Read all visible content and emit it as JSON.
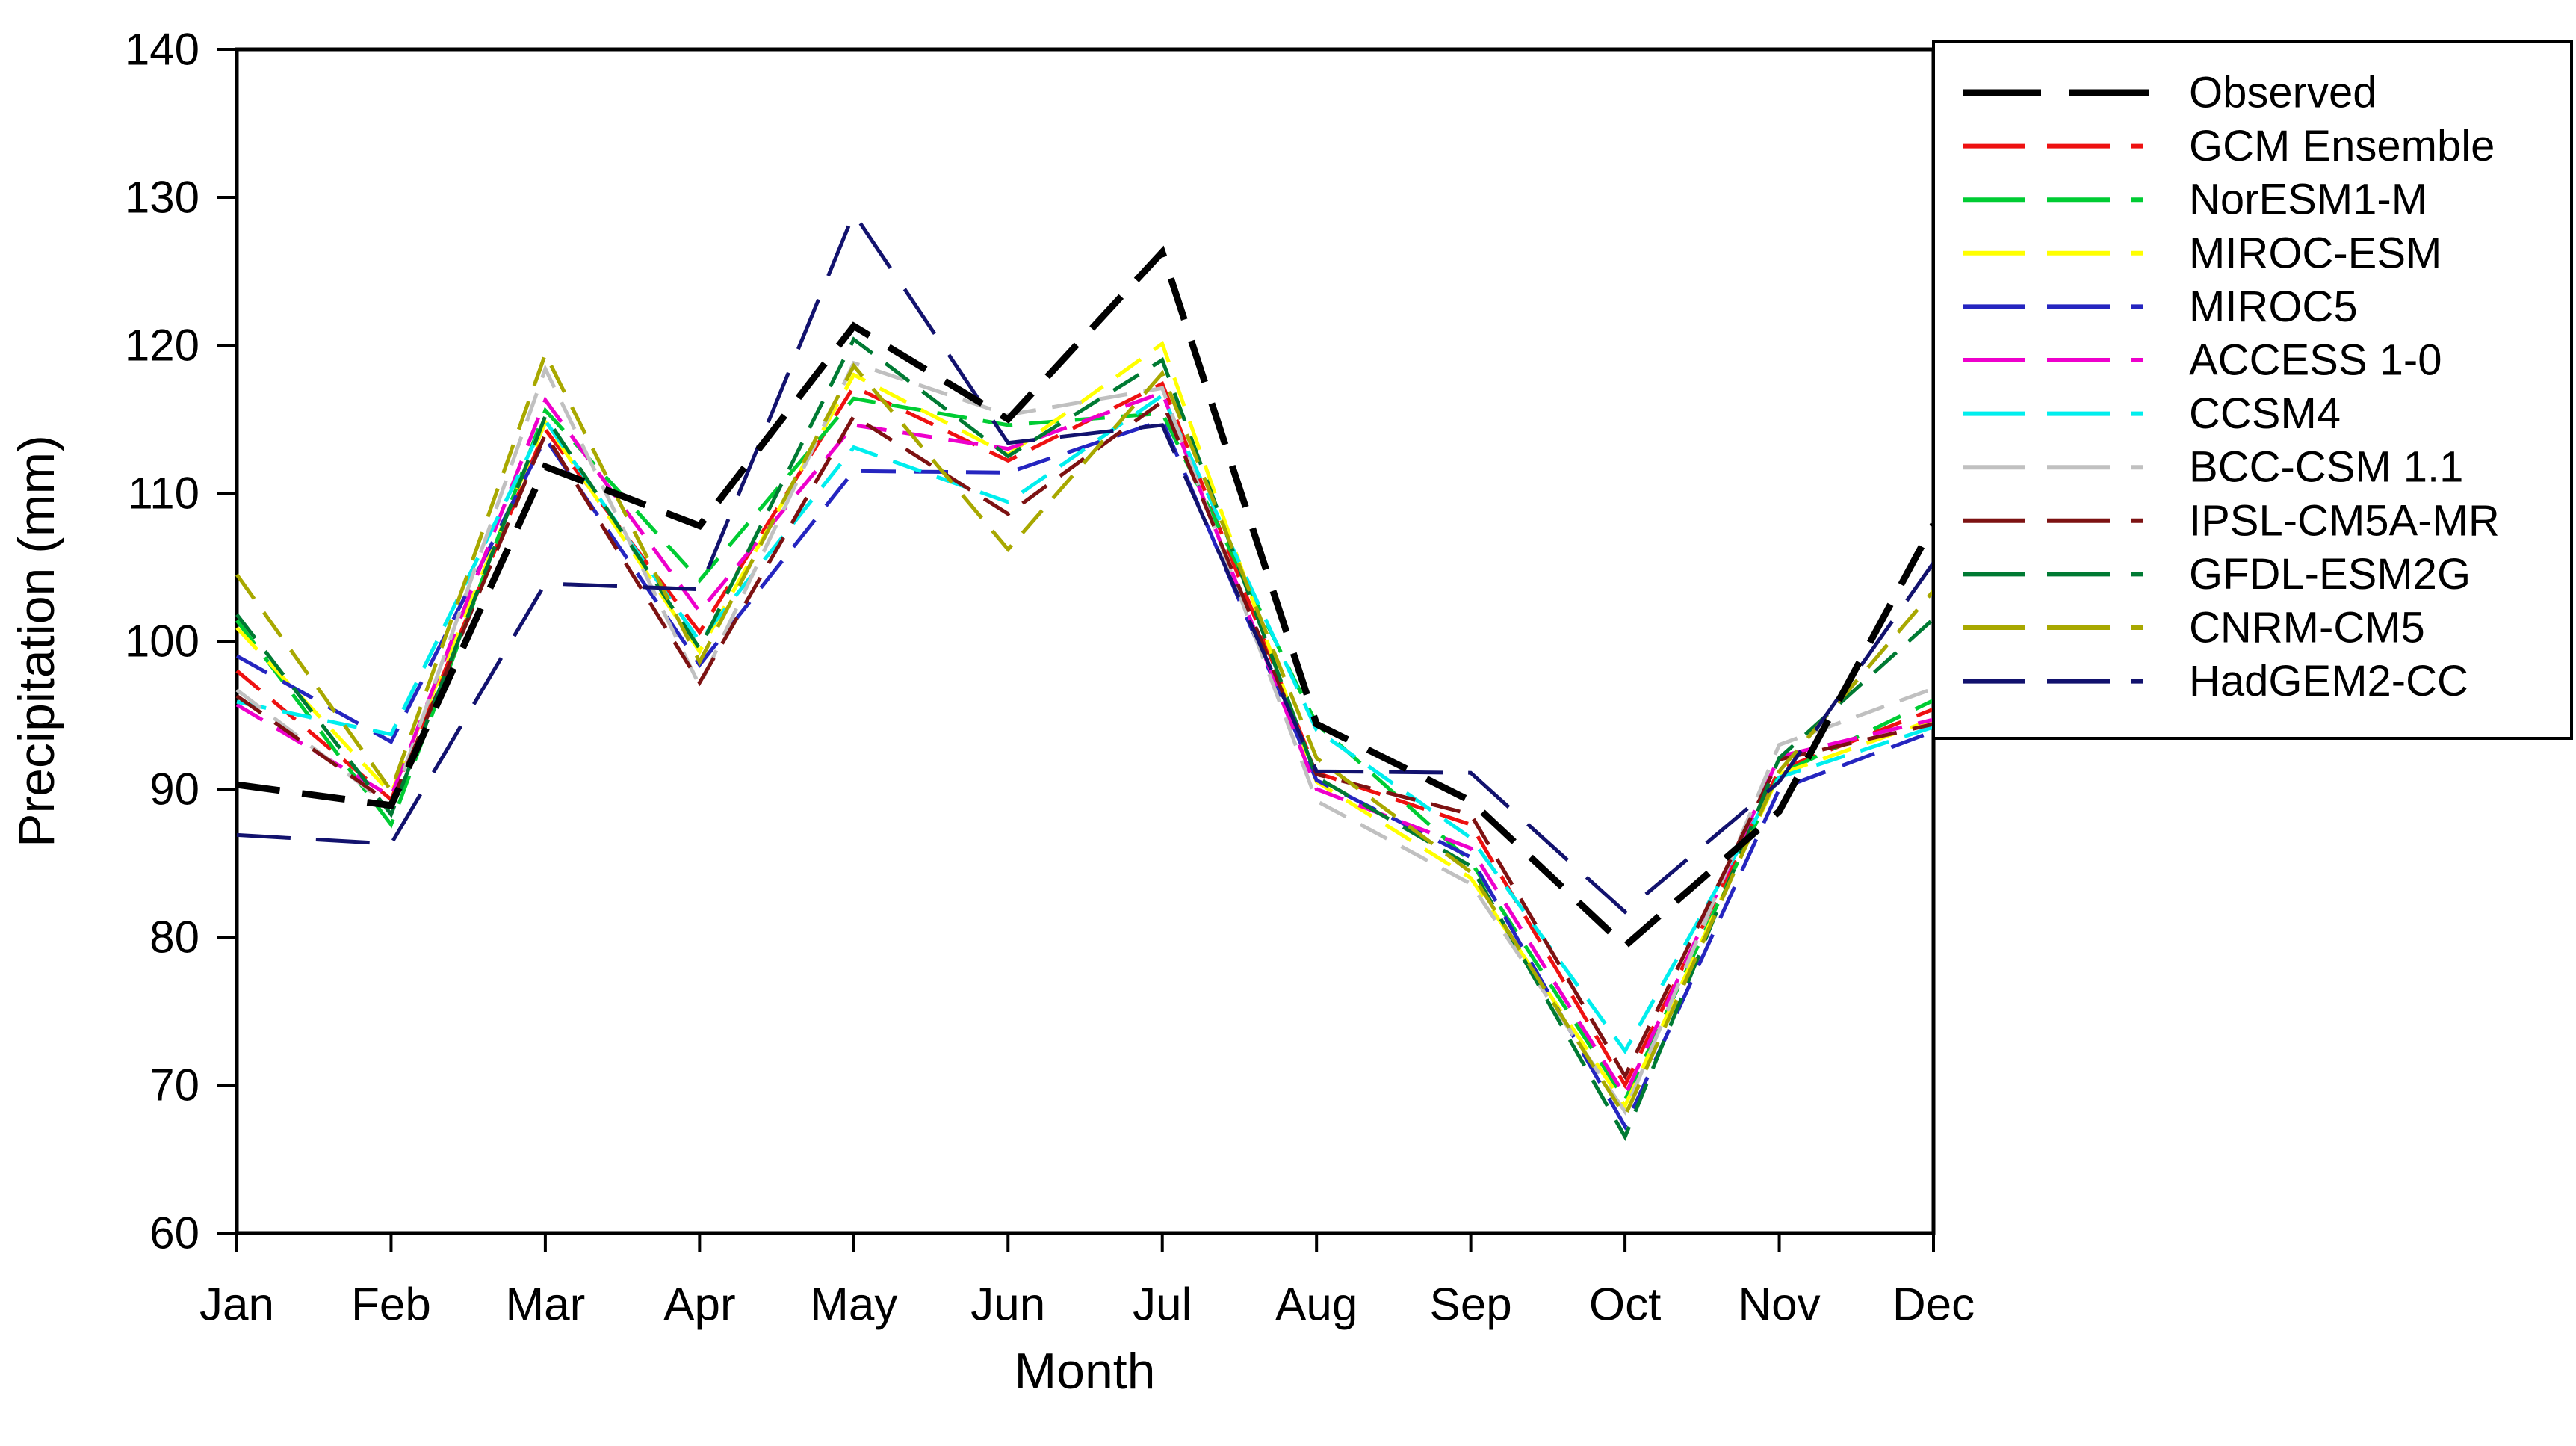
{
  "chart_data": {
    "type": "line",
    "title": "",
    "xlabel": "Month",
    "ylabel": "Precipitation (mm)",
    "categories": [
      "Jan",
      "Feb",
      "Mar",
      "Apr",
      "May",
      "Jun",
      "Jul",
      "Aug",
      "Sep",
      "Oct",
      "Nov",
      "Dec"
    ],
    "ylim": [
      60,
      140
    ],
    "yticks": [
      60,
      70,
      80,
      90,
      100,
      110,
      120,
      130,
      140
    ],
    "grid": false,
    "legend_position": "outside-right",
    "frame": true,
    "series": [
      {
        "name": "Observed",
        "color": "#000000",
        "width": 9,
        "dash": "58 30",
        "values": [
          90.3,
          88.9,
          111.8,
          107.8,
          121.3,
          115.0,
          126.3,
          94.4,
          89.2,
          79.4,
          88.5,
          107.9
        ]
      },
      {
        "name": "GCM Ensemble",
        "color": "#ee1111",
        "width": 5,
        "dash": "40 22",
        "values": [
          98.0,
          89.3,
          114.3,
          100.6,
          117.2,
          112.2,
          117.4,
          91.1,
          87.6,
          70.0,
          91.3,
          95.4
        ]
      },
      {
        "name": "NorESM1-M",
        "color": "#00cc33",
        "width": 5,
        "dash": "40 22",
        "values": [
          101.4,
          87.6,
          115.6,
          104.1,
          116.4,
          114.6,
          115.4,
          94.4,
          85.1,
          69.0,
          91.0,
          96.0
        ]
      },
      {
        "name": "MIROC-ESM",
        "color": "#ffff00",
        "width": 5,
        "dash": "40 22",
        "values": [
          100.9,
          89.7,
          114.8,
          99.3,
          118.0,
          112.6,
          120.1,
          90.5,
          84.0,
          68.6,
          91.0,
          94.7
        ]
      },
      {
        "name": "MIROC5",
        "color": "#2525c0",
        "width": 5,
        "dash": "46 24",
        "values": [
          99.0,
          93.2,
          113.7,
          98.4,
          111.5,
          111.4,
          114.9,
          90.6,
          85.4,
          67.2,
          90.0,
          93.9
        ]
      },
      {
        "name": "ACCESS 1-0",
        "color": "#ee00cc",
        "width": 5,
        "dash": "40 22",
        "values": [
          95.7,
          89.5,
          116.3,
          102.0,
          114.6,
          113.0,
          116.8,
          90.0,
          86.0,
          69.3,
          92.2,
          94.7
        ]
      },
      {
        "name": "CCSM4",
        "color": "#00eeee",
        "width": 5,
        "dash": "40 22",
        "values": [
          95.9,
          93.7,
          114.9,
          100.0,
          113.1,
          109.4,
          116.6,
          94.0,
          86.7,
          72.3,
          90.8,
          94.2
        ]
      },
      {
        "name": "BCC-CSM 1.1",
        "color": "#c0c0c0",
        "width": 5,
        "dash": "40 22",
        "values": [
          96.7,
          88.8,
          118.4,
          97.0,
          118.8,
          115.3,
          117.1,
          89.2,
          83.6,
          68.2,
          93.0,
          96.8
        ]
      },
      {
        "name": "IPSL-CM5A-MR",
        "color": "#7d1212",
        "width": 5,
        "dash": "40 22",
        "values": [
          96.3,
          89.0,
          114.0,
          97.2,
          115.2,
          108.6,
          116.2,
          91.0,
          88.3,
          70.6,
          92.0,
          94.4
        ]
      },
      {
        "name": "GFDL-ESM2G",
        "color": "#007a33",
        "width": 5,
        "dash": "40 22",
        "values": [
          101.8,
          88.3,
          115.2,
          99.5,
          120.4,
          112.5,
          119.0,
          90.8,
          84.8,
          66.5,
          92.1,
          101.5
        ]
      },
      {
        "name": "CNRM-CM5",
        "color": "#a8a800",
        "width": 5,
        "dash": "40 22",
        "values": [
          104.5,
          89.9,
          119.4,
          98.6,
          118.6,
          106.2,
          118.1,
          92.1,
          84.4,
          67.9,
          91.2,
          103.4
        ]
      },
      {
        "name": "HadGEM2-CC",
        "color": "#12126e",
        "width": 5,
        "dash": "72 34",
        "values": [
          86.9,
          86.3,
          103.9,
          103.5,
          128.9,
          113.4,
          114.6,
          91.2,
          91.1,
          81.7,
          90.5,
          105.3
        ]
      }
    ]
  }
}
